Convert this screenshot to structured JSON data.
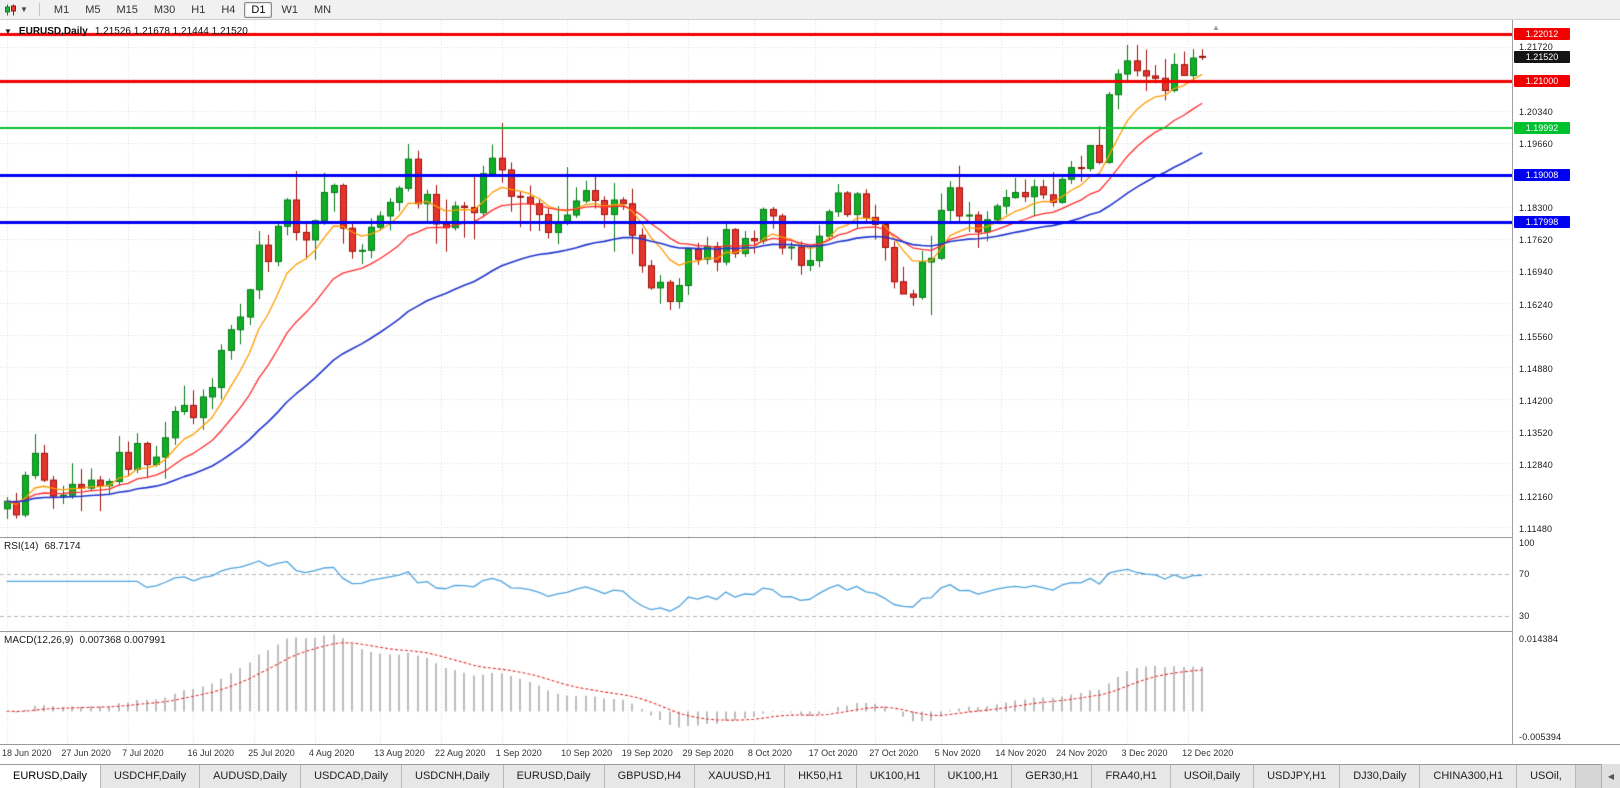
{
  "toolbar": {
    "timeframes": [
      "M1",
      "M5",
      "M15",
      "M30",
      "H1",
      "H4",
      "D1",
      "W1",
      "MN"
    ],
    "active": "D1"
  },
  "icons": {
    "collapse": "▼",
    "dropdown_caret": "▼",
    "tab_scroll_left": "◀",
    "shift_marker": "▲"
  },
  "chart": {
    "symbol": "EURUSD,Daily",
    "ohlc": "1.21526 1.21678 1.21444 1.21520"
  },
  "price_axis": {
    "labels": [
      "1.21720",
      "1.20340",
      "1.19660",
      "1.18300",
      "1.17620",
      "1.16940",
      "1.16240",
      "1.15560",
      "1.14880",
      "1.14200",
      "1.13520",
      "1.12840",
      "1.12160",
      "1.11480"
    ]
  },
  "current_price": {
    "value": 1.2152,
    "label": "1.21520",
    "color": "#141414"
  },
  "hlines": [
    {
      "price": 1.22012,
      "label": "1.22012",
      "color": "#f20000",
      "width": 3
    },
    {
      "price": 1.21,
      "label": "1.21000",
      "color": "#f20000",
      "width": 3
    },
    {
      "price": 1.19992,
      "label": "1.19992",
      "color": "#00c22e",
      "width": 2
    },
    {
      "price": 1.19008,
      "label": "1.19008",
      "color": "#0000f2",
      "width": 3
    },
    {
      "price": 1.17998,
      "label": "1.17998",
      "color": "#0000f2",
      "width": 3
    }
  ],
  "moving_averages": [
    {
      "period": 8,
      "color": "#ff9c00",
      "width": 1.3
    },
    {
      "period": 17,
      "color": "#ff2e2e",
      "width": 1.3
    },
    {
      "period": 40,
      "color": "#2136cf",
      "width": 1.6
    }
  ],
  "candle_colors": {
    "up_fill": "#0fae26",
    "up_border": "#077a17",
    "down_fill": "#e5342c",
    "down_border": "#9c100a"
  },
  "indicators": {
    "rsi": {
      "title": "RSI(14)",
      "value": "68.7174",
      "line_color": "#4fa3dd",
      "levels": [
        {
          "value": 100,
          "label": "100"
        },
        {
          "value": 70,
          "label": "70"
        },
        {
          "value": 30,
          "label": "30"
        }
      ]
    },
    "macd": {
      "title": "MACD(12,26,9)",
      "values": "0.007368 0.007991",
      "axis_top": "0.014384",
      "axis_bottom": "-0.005394",
      "hist_color": "#bdbdbd",
      "signal_color": "#e33535"
    }
  },
  "x_labels": [
    {
      "label": "18 Jun 2020",
      "bar": 0
    },
    {
      "label": "27 Jun 2020",
      "bar": 6.5
    },
    {
      "label": "7 Jul 2020",
      "bar": 13
    },
    {
      "label": "16 Jul 2020",
      "bar": 20
    },
    {
      "label": "25 Jul 2020",
      "bar": 26.5
    },
    {
      "label": "4 Aug 2020",
      "bar": 33
    },
    {
      "label": "13 Aug 2020",
      "bar": 40
    },
    {
      "label": "22 Aug 2020",
      "bar": 46.5
    },
    {
      "label": "1 Sep 2020",
      "bar": 53
    },
    {
      "label": "10 Sep 2020",
      "bar": 60
    },
    {
      "label": "19 Sep 2020",
      "bar": 66.5
    },
    {
      "label": "29 Sep 2020",
      "bar": 73
    },
    {
      "label": "8 Oct 2020",
      "bar": 80
    },
    {
      "label": "17 Oct 2020",
      "bar": 86.5
    },
    {
      "label": "27 Oct 2020",
      "bar": 93
    },
    {
      "label": "5 Nov 2020",
      "bar": 100
    },
    {
      "label": "14 Nov 2020",
      "bar": 106.5
    },
    {
      "label": "24 Nov 2020",
      "bar": 113
    },
    {
      "label": "3 Dec 2020",
      "bar": 120
    },
    {
      "label": "12 Dec 2020",
      "bar": 126.5
    }
  ],
  "chart_data": {
    "type": "candlestick",
    "symbol": "EURUSD",
    "timeframe": "Daily",
    "candles": [
      [
        1.119,
        1.1215,
        1.1168,
        1.1206
      ],
      [
        1.1206,
        1.1224,
        1.1169,
        1.1177
      ],
      [
        1.1177,
        1.1269,
        1.1172,
        1.1261
      ],
      [
        1.1261,
        1.1349,
        1.1253,
        1.1308
      ],
      [
        1.1308,
        1.1326,
        1.1247,
        1.1251
      ],
      [
        1.1251,
        1.126,
        1.119,
        1.1217
      ],
      [
        1.1217,
        1.1239,
        1.12,
        1.1219
      ],
      [
        1.1219,
        1.1287,
        1.1211,
        1.1242
      ],
      [
        1.1242,
        1.1275,
        1.1185,
        1.1234
      ],
      [
        1.1234,
        1.1276,
        1.1227,
        1.1251
      ],
      [
        1.1251,
        1.126,
        1.1185,
        1.1239
      ],
      [
        1.1239,
        1.1254,
        1.1219,
        1.1248
      ],
      [
        1.1248,
        1.1345,
        1.1239,
        1.131
      ],
      [
        1.131,
        1.1333,
        1.1259,
        1.1274
      ],
      [
        1.1274,
        1.1351,
        1.1266,
        1.1329
      ],
      [
        1.1329,
        1.1333,
        1.1255,
        1.1284
      ],
      [
        1.1284,
        1.1324,
        1.128,
        1.13
      ],
      [
        1.13,
        1.1375,
        1.1254,
        1.1341
      ],
      [
        1.1341,
        1.1408,
        1.1326,
        1.1397
      ],
      [
        1.1397,
        1.1452,
        1.139,
        1.141
      ],
      [
        1.141,
        1.1442,
        1.137,
        1.1384
      ],
      [
        1.1384,
        1.1444,
        1.1358,
        1.1428
      ],
      [
        1.1428,
        1.1468,
        1.1402,
        1.1448
      ],
      [
        1.1448,
        1.154,
        1.1423,
        1.1527
      ],
      [
        1.1527,
        1.1581,
        1.1507,
        1.1571
      ],
      [
        1.1571,
        1.1626,
        1.154,
        1.1598
      ],
      [
        1.1598,
        1.1658,
        1.1581,
        1.1656
      ],
      [
        1.1656,
        1.1781,
        1.1636,
        1.1751
      ],
      [
        1.1751,
        1.1773,
        1.1694,
        1.1716
      ],
      [
        1.1716,
        1.1797,
        1.1706,
        1.1791
      ],
      [
        1.1791,
        1.1851,
        1.1772,
        1.1847
      ],
      [
        1.1847,
        1.1909,
        1.1761,
        1.1778
      ],
      [
        1.1778,
        1.1797,
        1.1721,
        1.1762
      ],
      [
        1.1762,
        1.1805,
        1.172,
        1.1803
      ],
      [
        1.1803,
        1.1905,
        1.1794,
        1.1863
      ],
      [
        1.1863,
        1.1882,
        1.1822,
        1.1878
      ],
      [
        1.1878,
        1.1882,
        1.1754,
        1.1787
      ],
      [
        1.1787,
        1.1797,
        1.1722,
        1.1738
      ],
      [
        1.1738,
        1.1753,
        1.1711,
        1.174
      ],
      [
        1.174,
        1.1808,
        1.1723,
        1.1789
      ],
      [
        1.1789,
        1.1823,
        1.1782,
        1.1813
      ],
      [
        1.1813,
        1.1851,
        1.1782,
        1.1842
      ],
      [
        1.1842,
        1.1877,
        1.1823,
        1.1872
      ],
      [
        1.1872,
        1.1966,
        1.1865,
        1.1934
      ],
      [
        1.1934,
        1.1952,
        1.1829,
        1.1839
      ],
      [
        1.1839,
        1.1869,
        1.1802,
        1.1859
      ],
      [
        1.1859,
        1.1879,
        1.1754,
        1.1796
      ],
      [
        1.1796,
        1.1848,
        1.1737,
        1.1788
      ],
      [
        1.1788,
        1.1844,
        1.1782,
        1.1834
      ],
      [
        1.1834,
        1.1843,
        1.1767,
        1.1831
      ],
      [
        1.1831,
        1.1902,
        1.1763,
        1.182
      ],
      [
        1.182,
        1.192,
        1.181,
        1.1903
      ],
      [
        1.1903,
        1.1965,
        1.1898,
        1.1936
      ],
      [
        1.1936,
        1.2011,
        1.1884,
        1.1911
      ],
      [
        1.1911,
        1.1927,
        1.1822,
        1.1855
      ],
      [
        1.1855,
        1.1865,
        1.1789,
        1.1853
      ],
      [
        1.1853,
        1.1878,
        1.1781,
        1.1839
      ],
      [
        1.1839,
        1.1849,
        1.1781,
        1.1816
      ],
      [
        1.1816,
        1.1828,
        1.1765,
        1.1778
      ],
      [
        1.1778,
        1.1834,
        1.1753,
        1.1801
      ],
      [
        1.1801,
        1.1917,
        1.1793,
        1.1815
      ],
      [
        1.1815,
        1.1874,
        1.1809,
        1.1845
      ],
      [
        1.1845,
        1.1888,
        1.184,
        1.1867
      ],
      [
        1.1867,
        1.1901,
        1.1829,
        1.1846
      ],
      [
        1.1846,
        1.1855,
        1.1788,
        1.1816
      ],
      [
        1.1816,
        1.1883,
        1.1737,
        1.1847
      ],
      [
        1.1847,
        1.1853,
        1.1826,
        1.1839
      ],
      [
        1.1839,
        1.1871,
        1.1732,
        1.1772
      ],
      [
        1.1772,
        1.1787,
        1.1692,
        1.1707
      ],
      [
        1.1707,
        1.1719,
        1.1656,
        1.166
      ],
      [
        1.166,
        1.1687,
        1.1626,
        1.1672
      ],
      [
        1.1672,
        1.1677,
        1.1613,
        1.1631
      ],
      [
        1.1631,
        1.1681,
        1.1616,
        1.1665
      ],
      [
        1.1665,
        1.1745,
        1.1645,
        1.1742
      ],
      [
        1.1742,
        1.1756,
        1.1709,
        1.1721
      ],
      [
        1.1721,
        1.1769,
        1.171,
        1.1748
      ],
      [
        1.1748,
        1.1758,
        1.1695,
        1.1715
      ],
      [
        1.1715,
        1.1798,
        1.1708,
        1.1784
      ],
      [
        1.1784,
        1.1787,
        1.1724,
        1.1733
      ],
      [
        1.1733,
        1.1781,
        1.1726,
        1.1765
      ],
      [
        1.1765,
        1.1782,
        1.1733,
        1.176
      ],
      [
        1.176,
        1.1831,
        1.1753,
        1.1827
      ],
      [
        1.1827,
        1.1832,
        1.1786,
        1.1813
      ],
      [
        1.1813,
        1.1818,
        1.1731,
        1.1745
      ],
      [
        1.1745,
        1.1758,
        1.1719,
        1.1747
      ],
      [
        1.1747,
        1.1759,
        1.1688,
        1.1708
      ],
      [
        1.1708,
        1.1747,
        1.1696,
        1.1718
      ],
      [
        1.1718,
        1.1794,
        1.1704,
        1.177
      ],
      [
        1.177,
        1.1827,
        1.1761,
        1.1822
      ],
      [
        1.1822,
        1.1881,
        1.1811,
        1.1862
      ],
      [
        1.1862,
        1.1866,
        1.1811,
        1.1816
      ],
      [
        1.1816,
        1.1864,
        1.1787,
        1.186
      ],
      [
        1.186,
        1.187,
        1.1798,
        1.181
      ],
      [
        1.181,
        1.1837,
        1.1763,
        1.1795
      ],
      [
        1.1795,
        1.1801,
        1.1718,
        1.1746
      ],
      [
        1.1746,
        1.1759,
        1.1659,
        1.1673
      ],
      [
        1.1673,
        1.1705,
        1.1647,
        1.1647
      ],
      [
        1.1647,
        1.1656,
        1.1622,
        1.164
      ],
      [
        1.164,
        1.1739,
        1.1635,
        1.1715
      ],
      [
        1.1715,
        1.1771,
        1.1602,
        1.1723
      ],
      [
        1.1723,
        1.1861,
        1.1719,
        1.1825
      ],
      [
        1.1825,
        1.1887,
        1.1803,
        1.1873
      ],
      [
        1.1873,
        1.192,
        1.1801,
        1.1813
      ],
      [
        1.1813,
        1.1843,
        1.1779,
        1.1815
      ],
      [
        1.1815,
        1.1823,
        1.1745,
        1.1779
      ],
      [
        1.1779,
        1.1823,
        1.1759,
        1.1805
      ],
      [
        1.1805,
        1.1839,
        1.1799,
        1.1834
      ],
      [
        1.1834,
        1.1869,
        1.1816,
        1.1852
      ],
      [
        1.1852,
        1.1894,
        1.185,
        1.1863
      ],
      [
        1.1863,
        1.1891,
        1.1843,
        1.1854
      ],
      [
        1.1854,
        1.1891,
        1.1814,
        1.1875
      ],
      [
        1.1875,
        1.189,
        1.1849,
        1.1858
      ],
      [
        1.1858,
        1.1906,
        1.1833,
        1.1842
      ],
      [
        1.1842,
        1.1895,
        1.1839,
        1.1891
      ],
      [
        1.1891,
        1.193,
        1.1881,
        1.1916
      ],
      [
        1.1916,
        1.1941,
        1.1886,
        1.1914
      ],
      [
        1.1914,
        1.1964,
        1.1908,
        1.1963
      ],
      [
        1.1963,
        1.2004,
        1.1923,
        1.1927
      ],
      [
        1.1927,
        1.2077,
        1.1924,
        1.2071
      ],
      [
        1.2071,
        1.2125,
        1.204,
        1.2115
      ],
      [
        1.2115,
        1.2177,
        1.2098,
        1.2143
      ],
      [
        1.2143,
        1.2177,
        1.211,
        1.2122
      ],
      [
        1.2122,
        1.2167,
        1.2079,
        1.2111
      ],
      [
        1.2111,
        1.2134,
        1.2095,
        1.2106
      ],
      [
        1.2106,
        1.2147,
        1.2059,
        1.208
      ],
      [
        1.208,
        1.2159,
        1.2076,
        1.2135
      ],
      [
        1.2135,
        1.2163,
        1.2111,
        1.2112
      ],
      [
        1.2112,
        1.2168,
        1.21,
        1.2149
      ],
      [
        1.21526,
        1.21678,
        1.21444,
        1.2152
      ]
    ]
  },
  "tabs": {
    "items": [
      "EURUSD,Daily",
      "USDCHF,Daily",
      "AUDUSD,Daily",
      "USDCAD,Daily",
      "USDCNH,Daily",
      "EURUSD,Daily",
      "GBPUSD,H4",
      "XAUUSD,H1",
      "HK50,H1",
      "UK100,H1",
      "UK100,H1",
      "GER30,H1",
      "FRA40,H1",
      "USOil,Daily",
      "USDJPY,H1",
      "DJ30,Daily",
      "CHINA300,H1",
      "USOil,"
    ],
    "active_index": 0
  }
}
